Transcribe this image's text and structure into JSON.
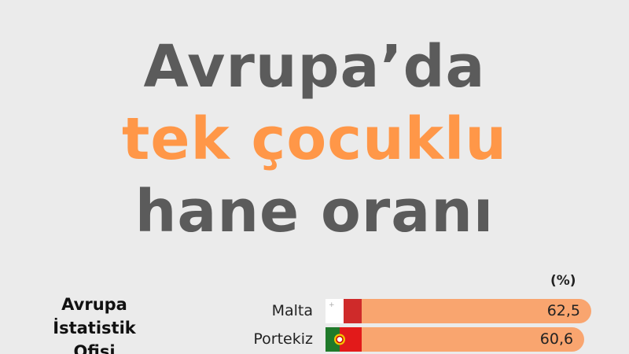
{
  "title": {
    "line1": "Avrupa’da",
    "line2": "tek çocuklu",
    "line3": "hane oranı"
  },
  "source": {
    "line1": "Avrupa",
    "line2": "İstatistik",
    "line3": "Ofisi"
  },
  "colors": {
    "title_gray": "#5b5b5b",
    "title_orange": "#ff9748",
    "bar": "#f9a56f",
    "background": "#ebebeb"
  },
  "chart_data": {
    "type": "bar",
    "orientation": "horizontal",
    "unit_label": "(%)",
    "categories": [
      "Malta",
      "Portekiz"
    ],
    "values": [
      62.5,
      60.6
    ],
    "value_labels": [
      "62,5",
      "60,6"
    ],
    "flags": [
      "malta-flag",
      "portugal-flag"
    ]
  }
}
